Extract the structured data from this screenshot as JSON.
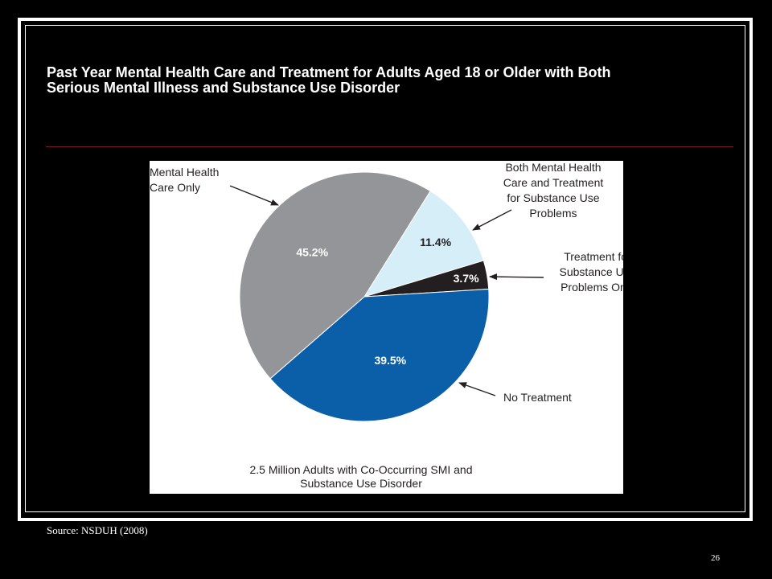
{
  "slide": {
    "title_line1": "Past Year Mental Health Care and Treatment for Adults Aged 18 or Older with Both",
    "title_line2": "Serious Mental Illness and Substance Use Disorder",
    "source": "Source: NSDUH (2008)",
    "page_number": "26"
  },
  "chart_data": {
    "type": "pie",
    "title": "",
    "caption_lines": [
      "2.5 Million Adults with Co-Occurring SMI and",
      "Substance Use Disorder"
    ],
    "unit": "%",
    "slices": [
      {
        "label_lines": [
          "Both Mental Health",
          "Care and Treatment",
          "for Substance Use",
          "Problems"
        ],
        "value": 11.4,
        "value_label": "11.4%",
        "color": "#d6eef8"
      },
      {
        "label_lines": [
          "Treatment for",
          "Substance Use",
          "Problems Only"
        ],
        "value": 3.7,
        "value_label": "3.7%",
        "color": "#231f20"
      },
      {
        "label_lines": [
          "No Treatment"
        ],
        "value": 39.5,
        "value_label": "39.5%",
        "color": "#0b5ea8"
      },
      {
        "label_lines": [
          "Mental Health",
          "Care Only"
        ],
        "value": 45.2,
        "value_label": "45.2%",
        "color": "#939598"
      }
    ]
  }
}
